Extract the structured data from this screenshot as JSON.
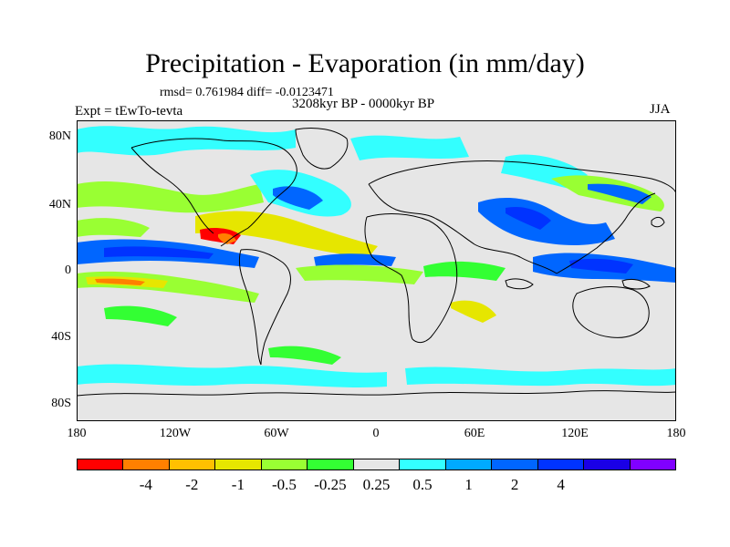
{
  "figure": {
    "title": "Precipitation - Evaporation (in mm/day)",
    "stats": "rmsd= 0.761984 diff= -0.0123471",
    "period": "3208kyr BP - 0000kyr BP",
    "experiment": "Expt = tEwTo-tevta",
    "season": "JJA"
  },
  "axes": {
    "y_labels": [
      "80N",
      "40N",
      "0",
      "40S",
      "80S"
    ],
    "x_labels": [
      "180",
      "120W",
      "60W",
      "0",
      "60E",
      "120E",
      "180"
    ]
  },
  "colorbar": {
    "colors": [
      "#ff0000",
      "#ff8000",
      "#ffc000",
      "#e6e600",
      "#99ff33",
      "#33ff33",
      "#e6e6e6",
      "#33ffff",
      "#00aaff",
      "#0066ff",
      "#0033ff",
      "#1a00e6",
      "#8000ff"
    ],
    "labels": [
      "-4",
      "-2",
      "-1",
      "-0.5",
      "-0.25",
      "0.25",
      "0.5",
      "1",
      "2",
      "4"
    ]
  },
  "palette": {
    "background": "#e6e6e6",
    "coast": "#000000"
  }
}
